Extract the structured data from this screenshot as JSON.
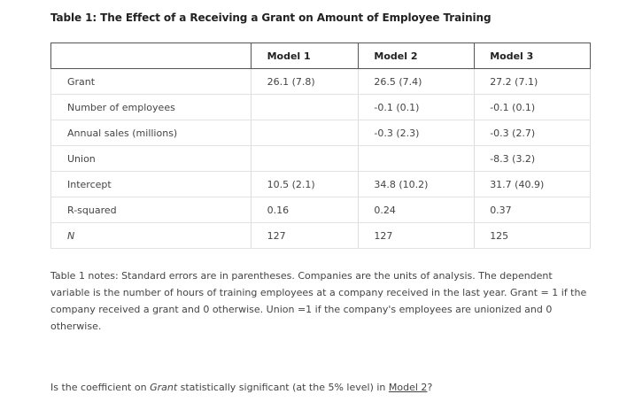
{
  "title": "Table 1: The Effect of a Receiving a Grant on Amount of Employee Training",
  "table": {
    "headers": [
      "",
      "Model 1",
      "Model 2",
      "Model 3"
    ],
    "rows": [
      {
        "label": "Grant",
        "m1": "26.1 (7.8)",
        "m2": "26.5 (7.4)",
        "m3": "27.2 (7.1)"
      },
      {
        "label": "Number of employees",
        "m1": "",
        "m2": "-0.1 (0.1)",
        "m3": "-0.1 (0.1)"
      },
      {
        "label": "Annual sales (millions)",
        "m1": "",
        "m2": "-0.3 (2.3)",
        "m3": "-0.3 (2.7)"
      },
      {
        "label": "Union",
        "m1": "",
        "m2": "",
        "m3": "-8.3 (3.2)"
      },
      {
        "label": "Intercept",
        "m1": "10.5 (2.1)",
        "m2": "34.8 (10.2)",
        "m3": "31.7 (40.9)"
      },
      {
        "label": "R-squared",
        "m1": "0.16",
        "m2": "0.24",
        "m3": "0.37"
      },
      {
        "label": "N",
        "m1": "127",
        "m2": "127",
        "m3": "125"
      }
    ]
  },
  "notes": "Table 1 notes: Standard errors are in parentheses.  Companies are the units of analysis. The dependent variable is the number of hours of training employees at a company received in the last year.  Grant = 1 if the company received a grant and 0 otherwise.  Union =1 if the company's employees are unionized and 0 otherwise.",
  "question": {
    "prefix": "Is the coefficient on ",
    "term": "Grant",
    "middle": " statistically significant (at the 5% level) in ",
    "model": "Model 2",
    "suffix": "?"
  }
}
